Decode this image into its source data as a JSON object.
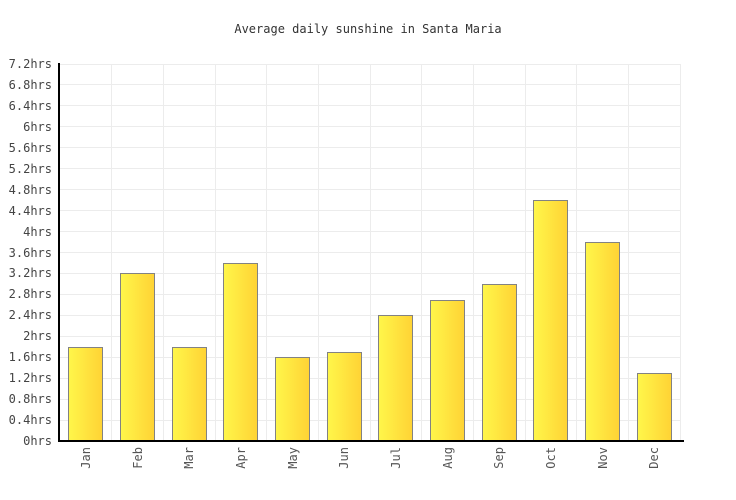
{
  "title": "Average daily sunshine in Santa Maria",
  "chart_data": {
    "type": "bar",
    "title": "Average daily sunshine in Santa Maria",
    "categories": [
      "Jan",
      "Feb",
      "Mar",
      "Apr",
      "May",
      "Jun",
      "Jul",
      "Aug",
      "Sep",
      "Oct",
      "Nov",
      "Dec"
    ],
    "values": [
      1.8,
      3.2,
      1.8,
      3.4,
      1.6,
      1.7,
      2.4,
      2.7,
      3.0,
      4.6,
      3.8,
      1.3
    ],
    "unit": "hrs",
    "xlabel": "",
    "ylabel": "",
    "ylim": [
      0,
      7.2
    ],
    "ytick_step": 0.4,
    "ytick_labels": [
      "0hrs",
      "0.4hrs",
      "0.8hrs",
      "1.2hrs",
      "1.6hrs",
      "2hrs",
      "2.4hrs",
      "2.8hrs",
      "3.2hrs",
      "3.6hrs",
      "4hrs",
      "4.4hrs",
      "4.8hrs",
      "5.2hrs",
      "5.6hrs",
      "6hrs",
      "6.4hrs",
      "6.8hrs",
      "7.2hrs"
    ],
    "grid": "on",
    "legend": "none"
  },
  "colors": {
    "background": "#ffffff",
    "bar_gradient_left": "#fff64a",
    "bar_gradient_right": "#ffd335",
    "bar_border": "#828282",
    "grid": "#ececec",
    "axis": "#000000",
    "title_text": "#333333",
    "ytick_text": "#444444",
    "xtick_text": "#555555"
  }
}
